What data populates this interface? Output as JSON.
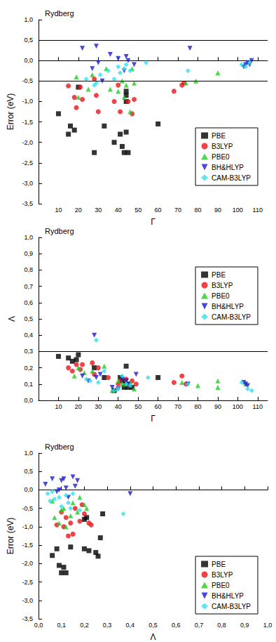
{
  "chart_data": [
    {
      "type": "scatter",
      "title": "Rydberg",
      "x_label": "Γ",
      "y_label": "Error (eV)",
      "xlim": [
        0,
        115
      ],
      "xticks": [
        10,
        20,
        30,
        40,
        50,
        60,
        70,
        80,
        90,
        100,
        110
      ],
      "ylim": [
        -3.5,
        1.0
      ],
      "yticks": [
        {
          "value": 1.0,
          "label": "1,0"
        },
        {
          "value": 0.5,
          "label": "0,5"
        },
        {
          "value": 0.0,
          "label": "0,0"
        },
        {
          "value": -0.5,
          "label": "-0,5"
        },
        {
          "value": -1.0,
          "label": "-1,0"
        },
        {
          "value": -1.5,
          "label": "-1,5"
        },
        {
          "value": -2.0,
          "label": "-2,0"
        },
        {
          "value": -2.5,
          "label": "-2,5"
        },
        {
          "value": -3.0,
          "label": "-3,0"
        },
        {
          "value": -3.5,
          "label": "-3,5"
        }
      ],
      "reference_lines": [
        0.5,
        -0.5
      ],
      "grid": false,
      "legend": "lower right",
      "series": [
        {
          "name": "PBE",
          "color": "#000000",
          "marker": "square",
          "x": [
            10,
            15,
            16,
            18,
            20,
            28,
            33,
            38,
            41,
            42,
            43,
            44,
            44,
            44,
            44,
            45,
            60
          ],
          "values": [
            -1.3,
            -1.8,
            -1.6,
            -1.7,
            -0.65,
            -2.25,
            -1.6,
            -2.0,
            -1.8,
            -2.1,
            -2.25,
            -0.75,
            -0.85,
            -1.0,
            -1.75,
            -2.25,
            -1.55
          ]
        },
        {
          "name": "B3LYP",
          "color": "#e8141c",
          "marker": "circle",
          "x": [
            15,
            18,
            19,
            21,
            22,
            28,
            29,
            30,
            38,
            40,
            41,
            45,
            47,
            48,
            68,
            72,
            73
          ],
          "values": [
            -0.62,
            -0.9,
            -1.15,
            -0.65,
            -0.95,
            -0.45,
            -0.85,
            -1.25,
            -1.0,
            -0.6,
            -1.25,
            -1.0,
            -1.3,
            -0.95,
            -0.75,
            -0.6,
            -0.55
          ]
        },
        {
          "name": "PBE0",
          "color": "#22cc22",
          "marker": "triangle-up",
          "x": [
            19,
            20,
            25,
            27,
            34,
            36,
            40,
            42,
            43,
            44,
            46,
            47,
            48,
            74,
            79,
            90
          ],
          "values": [
            -0.4,
            -0.9,
            -0.7,
            -0.35,
            -0.2,
            -0.7,
            -0.75,
            -0.5,
            -0.9,
            -0.6,
            -1.25,
            -0.2,
            -0.55,
            -0.55,
            -0.5,
            -0.3
          ]
        },
        {
          "name": "BH&HLYP",
          "color": "#1a1acc",
          "marker": "triangle-down",
          "x": [
            22,
            27,
            29,
            30,
            32,
            36,
            40,
            43,
            44,
            45,
            48,
            76,
            103,
            104,
            105,
            106,
            107
          ],
          "values": [
            0.3,
            -0.2,
            0.35,
            -0.05,
            -0.5,
            0.15,
            0.05,
            -0.25,
            0.1,
            0.0,
            -0.1,
            0.3,
            -0.15,
            -0.1,
            -0.05,
            -0.1,
            0.0
          ]
        },
        {
          "name": "CAM-B3LYP",
          "color": "#33e0f0",
          "marker": "diamond",
          "x": [
            24,
            28,
            29,
            31,
            35,
            38,
            40,
            41,
            43,
            44,
            46,
            54,
            75,
            102,
            104,
            106
          ],
          "values": [
            -0.45,
            -0.6,
            -0.55,
            -0.35,
            -0.25,
            -0.45,
            -0.15,
            -0.3,
            -0.2,
            -0.1,
            -0.25,
            -0.05,
            -0.25,
            -0.1,
            -0.15,
            -0.05
          ]
        }
      ]
    },
    {
      "type": "scatter",
      "title": "Rydberg",
      "x_label": "Γ",
      "y_label": "Λ",
      "xlim": [
        0,
        115
      ],
      "xticks": [
        10,
        20,
        30,
        40,
        50,
        60,
        70,
        80,
        90,
        100,
        110
      ],
      "ylim": [
        0.0,
        1.0
      ],
      "yticks": [
        {
          "value": 0.0,
          "label": "0,0"
        },
        {
          "value": 0.1,
          "label": "0,1"
        },
        {
          "value": 0.2,
          "label": "0,2"
        },
        {
          "value": 0.3,
          "label": "0,3"
        },
        {
          "value": 0.4,
          "label": "0,4"
        },
        {
          "value": 0.5,
          "label": "0,5"
        },
        {
          "value": 0.6,
          "label": "0,6"
        },
        {
          "value": 0.7,
          "label": "0,7"
        },
        {
          "value": 0.8,
          "label": "0,8"
        },
        {
          "value": 0.9,
          "label": "0,9"
        },
        {
          "value": 1.0,
          "label": "1,0"
        }
      ],
      "reference_lines": [
        0.3
      ],
      "grid": false,
      "legend": "upper right",
      "series": [
        {
          "name": "PBE",
          "color": "#000000",
          "marker": "square",
          "x": [
            10,
            15,
            17,
            19,
            20,
            28,
            33,
            38,
            41,
            42,
            43,
            44,
            44,
            45,
            47,
            60
          ],
          "values": [
            0.27,
            0.26,
            0.24,
            0.25,
            0.28,
            0.2,
            0.14,
            0.06,
            0.14,
            0.12,
            0.08,
            0.21,
            0.1,
            0.08,
            0.08,
            0.14
          ]
        },
        {
          "name": "B3LYP",
          "color": "#e8141c",
          "marker": "circle",
          "x": [
            15,
            17,
            19,
            21,
            22,
            27,
            28,
            30,
            35,
            40,
            41,
            44,
            47,
            49,
            68,
            72,
            74
          ],
          "values": [
            0.2,
            0.18,
            0.22,
            0.19,
            0.22,
            0.23,
            0.16,
            0.2,
            0.14,
            0.1,
            0.12,
            0.13,
            0.12,
            0.1,
            0.11,
            0.15,
            0.1
          ]
        },
        {
          "name": "PBE0",
          "color": "#22cc22",
          "marker": "triangle-up",
          "x": [
            18,
            20,
            23,
            27,
            33,
            37,
            40,
            42,
            44,
            46,
            48,
            72,
            80,
            90,
            90,
            104
          ],
          "values": [
            0.15,
            0.2,
            0.17,
            0.18,
            0.21,
            0.06,
            0.12,
            0.1,
            0.1,
            0.11,
            0.07,
            0.11,
            0.09,
            0.12,
            0.08,
            0.1
          ]
        },
        {
          "name": "BH&HLYP",
          "color": "#1a1acc",
          "marker": "triangle-down",
          "x": [
            22,
            25,
            28,
            29,
            31,
            37,
            40,
            42,
            44,
            45,
            49,
            75,
            103,
            104,
            105
          ],
          "values": [
            0.15,
            0.12,
            0.4,
            0.14,
            0.16,
            0.08,
            0.07,
            0.13,
            0.12,
            0.1,
            0.16,
            0.1,
            0.11,
            0.1,
            0.09
          ]
        },
        {
          "name": "CAM-B3LYP",
          "color": "#33e0f0",
          "marker": "diamond",
          "x": [
            24,
            26,
            29,
            30,
            33,
            38,
            40,
            42,
            44,
            46,
            55,
            75,
            102,
            105,
            107
          ],
          "values": [
            0.13,
            0.12,
            0.37,
            0.11,
            0.18,
            0.06,
            0.07,
            0.15,
            0.1,
            0.09,
            0.14,
            0.1,
            0.11,
            0.07,
            0.06
          ]
        }
      ]
    },
    {
      "type": "scatter",
      "title": "Rydberg",
      "x_label": "Λ",
      "y_label": "Error (eV)",
      "xlim": [
        0.0,
        1.0
      ],
      "xticks": [
        {
          "value": 0.0,
          "label": "0,0"
        },
        {
          "value": 0.1,
          "label": "0,1"
        },
        {
          "value": 0.2,
          "label": "0,2"
        },
        {
          "value": 0.3,
          "label": "0,3"
        },
        {
          "value": 0.4,
          "label": "0,4"
        },
        {
          "value": 0.5,
          "label": "0,5"
        },
        {
          "value": 0.6,
          "label": "0,6"
        },
        {
          "value": 0.7,
          "label": "0,7"
        },
        {
          "value": 0.8,
          "label": "0,8"
        },
        {
          "value": 0.9,
          "label": "0,9"
        },
        {
          "value": 1.0,
          "label": "1,0"
        }
      ],
      "ylim": [
        -3.5,
        1.0
      ],
      "yticks": [
        {
          "value": 1.0,
          "label": "1,0"
        },
        {
          "value": 0.5,
          "label": "0,5"
        },
        {
          "value": 0.0,
          "label": "0,0"
        },
        {
          "value": -0.5,
          "label": "-0,5"
        },
        {
          "value": -1.0,
          "label": "-1,0"
        },
        {
          "value": -1.5,
          "label": "-1,5"
        },
        {
          "value": -2.0,
          "label": "-2,0"
        },
        {
          "value": -2.5,
          "label": "-2,5"
        },
        {
          "value": -3.0,
          "label": "-3,0"
        },
        {
          "value": -3.5,
          "label": "-3,5"
        }
      ],
      "grid": false,
      "legend": "lower right",
      "series": [
        {
          "name": "PBE",
          "color": "#000000",
          "marker": "square",
          "x": [
            0.06,
            0.08,
            0.09,
            0.1,
            0.11,
            0.12,
            0.14,
            0.2,
            0.22,
            0.25,
            0.26,
            0.27,
            0.28,
            0.21,
            0.2
          ],
          "values": [
            -1.78,
            -1.6,
            -2.05,
            -2.25,
            -2.1,
            -2.25,
            -1.55,
            -1.6,
            -1.65,
            -1.7,
            -1.8,
            -1.3,
            -0.65,
            -0.75,
            -0.8
          ]
        },
        {
          "name": "B3LYP",
          "color": "#e8141c",
          "marker": "circle",
          "x": [
            0.08,
            0.1,
            0.11,
            0.12,
            0.13,
            0.14,
            0.15,
            0.16,
            0.18,
            0.19,
            0.2,
            0.22,
            0.23
          ],
          "values": [
            -0.95,
            -0.6,
            -1.0,
            -0.75,
            -1.25,
            -0.9,
            -1.2,
            -0.5,
            -0.85,
            -0.4,
            -0.65,
            -0.9,
            -0.95
          ]
        },
        {
          "name": "PBE0",
          "color": "#22cc22",
          "marker": "triangle-up",
          "x": [
            0.06,
            0.07,
            0.09,
            0.1,
            0.11,
            0.12,
            0.14,
            0.15,
            0.17,
            0.18,
            0.2,
            0.21
          ],
          "values": [
            -0.3,
            -0.75,
            -0.9,
            -0.55,
            -0.5,
            -1.0,
            -0.7,
            -0.35,
            -0.6,
            -0.2,
            -0.4,
            -0.5
          ]
        },
        {
          "name": "BH&HLYP",
          "color": "#1a1acc",
          "marker": "triangle-down",
          "x": [
            0.03,
            0.06,
            0.08,
            0.09,
            0.1,
            0.11,
            0.12,
            0.13,
            0.15,
            0.16,
            0.17,
            0.4
          ],
          "values": [
            0.15,
            0.3,
            -0.05,
            0.0,
            0.25,
            0.3,
            0.05,
            -0.2,
            0.35,
            0.1,
            0.25,
            -0.1
          ]
        },
        {
          "name": "CAM-B3LYP",
          "color": "#33e0f0",
          "marker": "diamond",
          "x": [
            0.04,
            0.05,
            0.06,
            0.07,
            0.09,
            0.1,
            0.12,
            0.13,
            0.14,
            0.15,
            0.18,
            0.37
          ],
          "values": [
            -0.1,
            -0.3,
            -0.05,
            -0.25,
            -0.2,
            -0.45,
            -0.15,
            -0.35,
            -0.5,
            -0.1,
            -0.55,
            -0.65
          ]
        }
      ]
    }
  ]
}
